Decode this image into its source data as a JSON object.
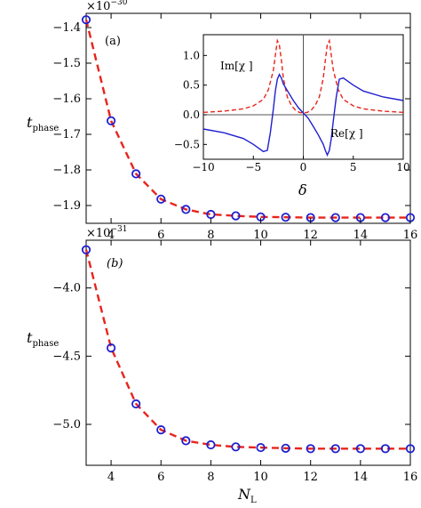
{
  "chart_data": [
    {
      "type": "scatter",
      "panel_label": "(a)",
      "multiplier": "×10",
      "multiplier_exp": "−30",
      "ylabel_main": "t",
      "ylabel_sub": "phase",
      "xlim": [
        3,
        16
      ],
      "ylim": [
        -1.95,
        -1.36
      ],
      "x_ticks": [
        4,
        6,
        8,
        10,
        12,
        14,
        16
      ],
      "y_ticks": [
        -1.4,
        -1.5,
        -1.6,
        -1.7,
        -1.8,
        -1.9
      ],
      "y_tick_labels": [
        "−1.4",
        "−1.5",
        "−1.6",
        "−1.7",
        "−1.8",
        "−1.9"
      ],
      "series": [
        {
          "style": "circles",
          "x": [
            3,
            4,
            5,
            6,
            7,
            8,
            9,
            10,
            11,
            12,
            13,
            14,
            15,
            16
          ],
          "y": [
            -1.378,
            -1.662,
            -1.811,
            -1.882,
            -1.911,
            -1.925,
            -1.929,
            -1.932,
            -1.933,
            -1.934,
            -1.934,
            -1.934,
            -1.934,
            -1.934
          ]
        },
        {
          "style": "dashed-fit",
          "x": [
            3,
            4,
            5,
            6,
            7,
            8,
            9,
            10,
            11,
            12,
            13,
            14,
            15,
            16
          ],
          "y": [
            -1.378,
            -1.662,
            -1.811,
            -1.882,
            -1.911,
            -1.925,
            -1.929,
            -1.932,
            -1.933,
            -1.934,
            -1.934,
            -1.934,
            -1.934,
            -1.934
          ]
        }
      ],
      "inset": {
        "type": "line",
        "xlabel": "δ",
        "xlim": [
          -10,
          10
        ],
        "ylim": [
          -0.75,
          1.35
        ],
        "x_ticks": [
          -10,
          -5,
          0,
          5,
          10
        ],
        "x_tick_labels": [
          "−10",
          "−5",
          "0",
          "5",
          "10"
        ],
        "y_ticks": [
          -0.5,
          0.0,
          0.5,
          1.0
        ],
        "y_tick_labels": [
          "−0.5",
          "0.0",
          "0.5",
          "1.0"
        ],
        "label_im": "Im[χ ]",
        "label_re": "Re[χ ]",
        "series_im": {
          "x": [
            -10,
            -8,
            -6,
            -5,
            -4,
            -3.5,
            -3,
            -2.8,
            -2.6,
            -2.4,
            -2.2,
            -2,
            -1.6,
            -1.2,
            -0.8,
            -0.4,
            0,
            0.4,
            0.8,
            1.2,
            1.6,
            2,
            2.2,
            2.4,
            2.6,
            2.8,
            3,
            3.5,
            4,
            5,
            6,
            8,
            10
          ],
          "y": [
            0.04,
            0.06,
            0.1,
            0.15,
            0.26,
            0.42,
            0.75,
            1.0,
            1.25,
            1.18,
            0.92,
            0.62,
            0.3,
            0.16,
            0.08,
            0.04,
            0.03,
            0.04,
            0.08,
            0.16,
            0.3,
            0.62,
            0.92,
            1.18,
            1.25,
            1.0,
            0.75,
            0.42,
            0.26,
            0.15,
            0.1,
            0.06,
            0.04
          ]
        },
        "series_re": {
          "x": [
            -10,
            -8,
            -6,
            -5,
            -4,
            -3.6,
            -3.3,
            -3.0,
            -2.8,
            -2.6,
            -2.4,
            -2.2,
            -2,
            -1.5,
            -1,
            -0.5,
            0,
            0.5,
            1,
            1.5,
            2,
            2.2,
            2.4,
            2.6,
            2.8,
            3.0,
            3.3,
            3.6,
            4,
            5,
            6,
            8,
            10
          ],
          "y": [
            -0.24,
            -0.3,
            -0.4,
            -0.5,
            -0.62,
            -0.6,
            -0.3,
            0.1,
            0.4,
            0.6,
            0.68,
            0.62,
            0.52,
            0.38,
            0.24,
            0.12,
            0.03,
            -0.06,
            -0.2,
            -0.34,
            -0.5,
            -0.6,
            -0.68,
            -0.6,
            -0.4,
            -0.1,
            0.3,
            0.6,
            0.62,
            0.5,
            0.4,
            0.3,
            0.24
          ]
        }
      }
    },
    {
      "type": "scatter",
      "panel_label": "(b)",
      "multiplier": "×10",
      "multiplier_exp": "−31",
      "ylabel_main": "t",
      "ylabel_sub": "phase",
      "xlabel_main": "N",
      "xlabel_sub": "L",
      "xlim": [
        3,
        16
      ],
      "ylim": [
        -5.3,
        -3.65
      ],
      "x_ticks": [
        4,
        6,
        8,
        10,
        12,
        14,
        16
      ],
      "y_ticks": [
        -4.0,
        -4.5,
        -5.0
      ],
      "y_tick_labels": [
        "−4.0",
        "−4.5",
        "−5.0"
      ],
      "series": [
        {
          "style": "circles",
          "x": [
            3,
            4,
            5,
            6,
            7,
            8,
            9,
            10,
            11,
            12,
            13,
            14,
            15,
            16
          ],
          "y": [
            -3.72,
            -4.44,
            -4.85,
            -5.04,
            -5.12,
            -5.15,
            -5.165,
            -5.17,
            -5.175,
            -5.178,
            -5.178,
            -5.178,
            -5.178,
            -5.178
          ]
        },
        {
          "style": "dashed-fit",
          "x": [
            3,
            4,
            5,
            6,
            7,
            8,
            9,
            10,
            11,
            12,
            13,
            14,
            15,
            16
          ],
          "y": [
            -3.72,
            -4.44,
            -4.85,
            -5.04,
            -5.12,
            -5.15,
            -5.165,
            -5.17,
            -5.175,
            -5.178,
            -5.178,
            -5.178,
            -5.178,
            -5.178
          ]
        }
      ]
    }
  ]
}
